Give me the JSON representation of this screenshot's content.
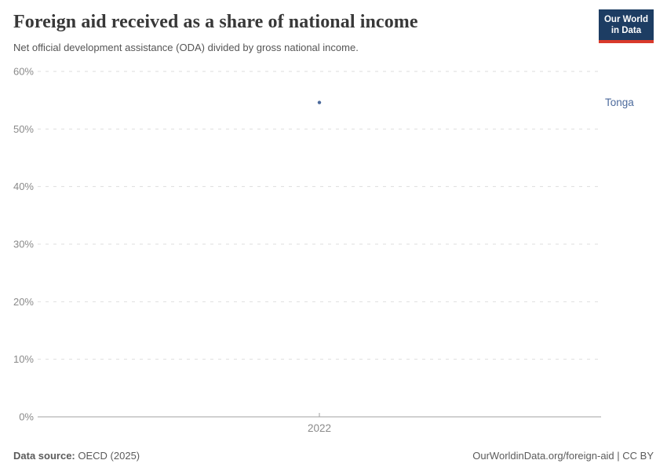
{
  "header": {
    "title": "Foreign aid received as a share of national income",
    "subtitle": "Net official development assistance (ODA) divided by gross national income.",
    "logo": {
      "line1": "Our World",
      "line2": "in Data",
      "bg_color": "#1d3d63",
      "accent_color": "#d93a2b"
    }
  },
  "chart_data": {
    "type": "line",
    "title": "Foreign aid received as a share of national income",
    "subtitle": "Net official development assistance (ODA) divided by gross national income.",
    "x_ticks": [
      "2022"
    ],
    "y_ticks": [
      0,
      10,
      20,
      30,
      40,
      50,
      60
    ],
    "y_suffix": "%",
    "ylim": [
      0,
      60
    ],
    "grid": true,
    "legend_position": "right-of-point",
    "series": [
      {
        "name": "Tonga",
        "color": "#4c6a9c",
        "points": [
          {
            "x": 2022,
            "y": 54.6
          }
        ]
      }
    ],
    "colors": {
      "gridline": "#dedede",
      "axis_line": "#a1a1a1",
      "tick_label": "#8a8a8a"
    }
  },
  "footer": {
    "source_label": "Data source:",
    "source_value": "OECD (2025)",
    "credit": "OurWorldinData.org/foreign-aid | CC BY"
  }
}
